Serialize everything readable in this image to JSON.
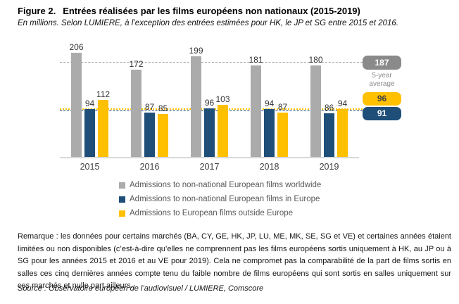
{
  "header": {
    "figure_label": "Figure 2.",
    "title": "Entrées réalisées par les films européens non nationaux (2015-2019)",
    "subtitle": "En millions. Selon LUMIERE, à l’exception des entrées estimées pour HK, le JP et SG entre 2015 et 2016."
  },
  "chart_data": {
    "type": "bar",
    "unit": "millions of admissions",
    "categories": [
      "2015",
      "2016",
      "2017",
      "2018",
      "2019"
    ],
    "series": [
      {
        "name": "Admissions to non-national European films worldwide",
        "color": "#ABABAB",
        "values": [
          206,
          172,
          199,
          181,
          180
        ]
      },
      {
        "name": "Admissions to non-national European films in Europe",
        "color": "#1F4E79",
        "values": [
          94,
          87,
          96,
          94,
          86
        ]
      },
      {
        "name": "Admissions to European films outside Europe",
        "color": "#FFC000",
        "values": [
          112,
          85,
          103,
          87,
          94
        ]
      }
    ],
    "averages": {
      "caption_line1": "5-year",
      "caption_line2": "average",
      "worldwide": 187,
      "outside_europe": 96,
      "in_europe": 91
    },
    "ylim": [
      0,
      230
    ],
    "grid": false,
    "legend_position": "bottom",
    "data_labels": true
  },
  "colors": {
    "gray_bar": "#ABABAB",
    "gray_badge": "#8A8A8A",
    "blue": "#1F4E79",
    "yellow": "#FFC000",
    "baseline": "#D9D9D9"
  },
  "footer": {
    "note": "Remarque : les données pour certains marchés (BA, CY, GE, HK, JP, LU, ME, MK, SE, SG et VE) et certaines années étaient limitées ou non disponibles (c’est-à-dire qu’elles ne comprennent pas les films européens sortis uniquement à HK, au JP ou à SG pour les années 2015 et 2016 et au VE pour 2019). Cela ne compromet pas la comparabilité de la part de films sortis en salles ces cinq dernières années compte tenu du faible nombre de films européens qui sont sortis en salles uniquement sur ces marchés et nulle part ailleurs.",
    "source": "Source : Observatoire européen de l’audiovisuel / LUMIERE, Comscore"
  }
}
